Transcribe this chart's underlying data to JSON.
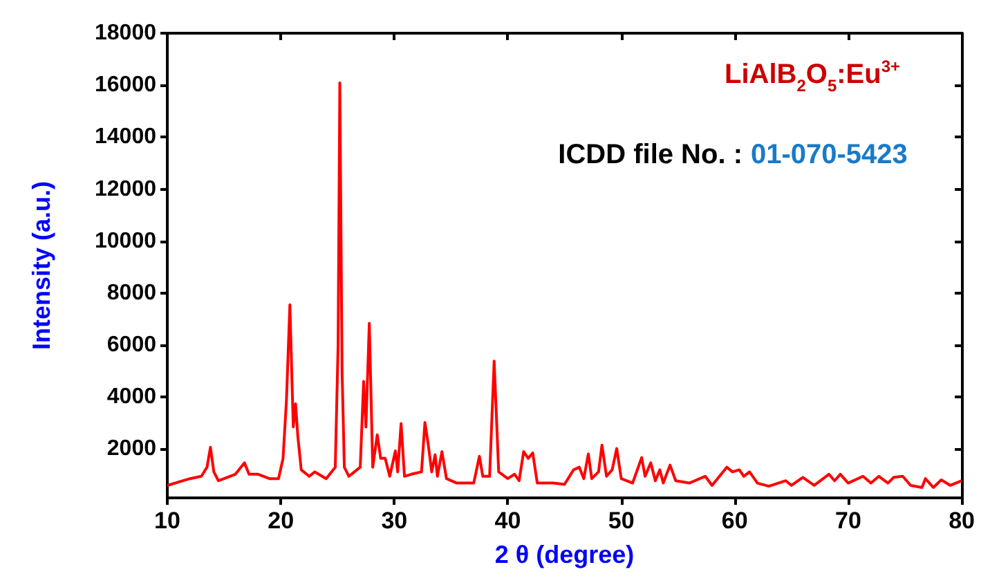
{
  "chart_data": {
    "type": "line",
    "xlabel": "2 θ (degree)",
    "ylabel": "Intensity (a.u.)",
    "annotations": [
      "LiAlB$_{2}$O$_{5}$:Eu$^{3+}$",
      "ICDD file No. :",
      "01-070-5423"
    ],
    "xlim": [
      10,
      80
    ],
    "xticks": [
      10,
      20,
      30,
      40,
      50,
      60,
      70,
      80
    ],
    "ylim": [
      120,
      18000
    ],
    "yticks": [
      2000,
      4000,
      6000,
      8000,
      10000,
      12000,
      14000,
      16000,
      18000
    ],
    "grid": false,
    "marker": "none",
    "line_style": "solid",
    "series": [
      {
        "color": "#ff0000",
        "x": [
          10,
          12,
          13,
          13.5,
          13.8,
          14.1,
          14.5,
          15,
          16,
          16.8,
          17.2,
          18,
          19,
          19.8,
          20.2,
          20.5,
          20.8,
          21.1,
          21.3,
          21.5,
          21.8,
          22.5,
          23,
          24,
          24.8,
          25.05,
          25.2,
          25.4,
          25.6,
          26,
          27,
          27.3,
          27.5,
          27.8,
          28.1,
          28.5,
          28.8,
          29.2,
          29.6,
          30.1,
          30.3,
          30.6,
          30.9,
          31.5,
          32.4,
          32.7,
          33,
          33.3,
          33.6,
          33.8,
          34.2,
          34.6,
          35.5,
          37,
          37.5,
          37.8,
          38.4,
          38.8,
          39.2,
          40,
          40.6,
          41,
          41.4,
          41.8,
          42.2,
          42.6,
          44,
          45,
          45.8,
          46.3,
          46.7,
          47.1,
          47.4,
          48,
          48.3,
          48.7,
          49.2,
          49.6,
          50,
          51,
          51.8,
          52.1,
          52.6,
          53,
          53.4,
          53.7,
          54.3,
          54.8,
          56,
          57.4,
          58,
          59.3,
          59.8,
          60.4,
          60.8,
          61.3,
          62,
          63,
          64.5,
          65,
          66,
          67,
          68.3,
          68.8,
          69.3,
          70,
          71.3,
          72,
          72.7,
          73.5,
          74,
          74.8,
          75.5,
          76.5,
          76.8,
          77.5,
          78.2,
          79,
          80
        ],
        "values": [
          600,
          860,
          950,
          1300,
          2070,
          1120,
          780,
          860,
          1030,
          1470,
          1030,
          1030,
          860,
          860,
          1640,
          3880,
          7550,
          2850,
          3740,
          2500,
          1200,
          950,
          1120,
          860,
          1300,
          6000,
          16090,
          5000,
          1300,
          950,
          1300,
          4600,
          2850,
          6840,
          1300,
          2550,
          1640,
          1640,
          950,
          1930,
          1120,
          2980,
          950,
          1030,
          1120,
          3020,
          2150,
          1120,
          1780,
          950,
          1900,
          860,
          690,
          690,
          1720,
          950,
          950,
          5380,
          1120,
          860,
          1030,
          780,
          1900,
          1640,
          1850,
          690,
          690,
          640,
          1200,
          1300,
          860,
          1810,
          860,
          1120,
          2150,
          950,
          1200,
          2020,
          860,
          690,
          1670,
          950,
          1470,
          780,
          1200,
          690,
          1380,
          780,
          690,
          950,
          600,
          1300,
          1120,
          1200,
          950,
          1120,
          690,
          570,
          780,
          600,
          910,
          600,
          1030,
          780,
          1030,
          690,
          950,
          690,
          950,
          690,
          910,
          950,
          600,
          520,
          860,
          520,
          810,
          600,
          780
        ]
      }
    ]
  }
}
